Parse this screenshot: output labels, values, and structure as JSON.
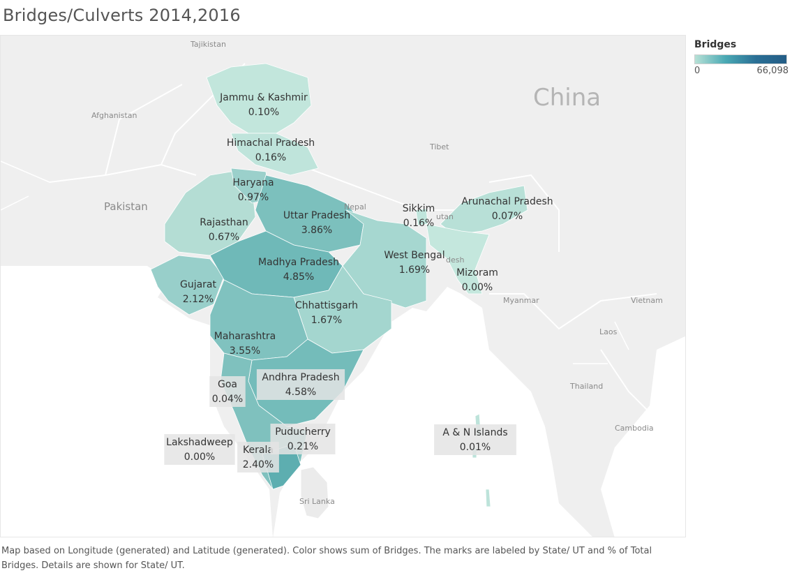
{
  "title": "Bridges/Culverts 2014,2016",
  "legend": {
    "title": "Bridges",
    "min": "0",
    "max": "66,098",
    "colors": [
      "#b7e1d6",
      "#4aa9b4",
      "#245d86"
    ]
  },
  "caption": "Map based on Longitude (generated) and Latitude (generated).  Color shows sum of Bridges.  The marks are labeled by State/ UT and % of Total Bridges.  Details are shown for State/ UT.",
  "background_labels": {
    "tajikistan": "Tajikistan",
    "afghanistan": "Afghanistan",
    "pakistan": "Pakistan",
    "china": "China",
    "tibet": "Tibet",
    "nepal": "Nepal",
    "bhutan": "utan",
    "bangladesh": "desh",
    "myanmar": "Myanmar",
    "vietnam": "Vietnam",
    "laos": "Laos",
    "thailand": "Thailand",
    "cambodia": "Cambodia",
    "srilanka": "Sri Lanka"
  },
  "chart_data": {
    "type": "map",
    "measure": "% of Total Bridges",
    "regions": [
      {
        "name": "Jammu & Kashmir",
        "pct": "0.10%"
      },
      {
        "name": "Himachal Pradesh",
        "pct": "0.16%"
      },
      {
        "name": "Haryana",
        "pct": "0.97%"
      },
      {
        "name": "Rajasthan",
        "pct": "0.67%"
      },
      {
        "name": "Uttar Pradesh",
        "pct": "3.86%"
      },
      {
        "name": "Sikkim",
        "pct": "0.16%"
      },
      {
        "name": "Arunachal Pradesh",
        "pct": "0.07%"
      },
      {
        "name": "West Bengal",
        "pct": "1.69%"
      },
      {
        "name": "Mizoram",
        "pct": "0.00%"
      },
      {
        "name": "Madhya Pradesh",
        "pct": "4.85%"
      },
      {
        "name": "Gujarat",
        "pct": "2.12%"
      },
      {
        "name": "Chhattisgarh",
        "pct": "1.67%"
      },
      {
        "name": "Maharashtra",
        "pct": "3.55%"
      },
      {
        "name": "Goa",
        "pct": "0.04%"
      },
      {
        "name": "Andhra Pradesh",
        "pct": "4.58%"
      },
      {
        "name": "Lakshadweep",
        "pct": "0.00%"
      },
      {
        "name": "Kerala",
        "pct": "2.40%"
      },
      {
        "name": "Puducherry",
        "pct": "0.21%"
      },
      {
        "name": "A & N Islands",
        "pct": "0.01%"
      }
    ]
  }
}
